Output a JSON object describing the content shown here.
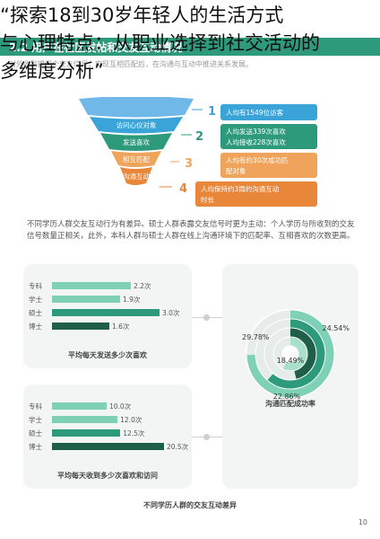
{
  "overlay_title": [
    "“探索18到30岁年轻人的生活方式",
    "与心理特点：从职业选择到社交活动的",
    "多维度分析”"
  ],
  "section_title": "2.2 用户在社区发帖和交友互动情况",
  "intro_text": "对外收到提问个交友信号，实现互相匹配后，在沟通与互动中推进关系发展。",
  "funnel": {
    "stages": [
      {
        "label": "",
        "color": "#6fb8e8"
      },
      {
        "label": "访问心仪对象",
        "color": "#3aa3d8"
      },
      {
        "label": "发送喜欢",
        "color": "#2e9a7c"
      },
      {
        "label": "相互匹配",
        "color": "#f0a35a"
      },
      {
        "label": "沟通互动",
        "color": "#e8863a"
      }
    ],
    "steps": [
      {
        "num": "1",
        "text": [
          "人均有1549位访客"
        ],
        "color": "#3aa3d8"
      },
      {
        "num": "2",
        "text": [
          "人均发送339次喜欢",
          "人均接收228次喜欢"
        ],
        "color": "#2e9a7c"
      },
      {
        "num": "3",
        "text": [
          "人均有约30次成功匹",
          "配对象"
        ],
        "color": "#f0a35a"
      },
      {
        "num": "4",
        "text": [
          "人均保持约3周的沟通互动",
          "时长"
        ],
        "color": "#e8863a"
      }
    ]
  },
  "paragraph": "不同学历人群交友互动行为有差异。硕士人群表露交友信号时更为主动：个人学历与所收到的交友信号数量正相关，此外，本科人群与硕士人群在线上沟通环境下的匹配率、互相喜欢的次数更高。",
  "charts": {
    "sent": {
      "title": "平均每天发送多少次喜欢"
    },
    "received": {
      "title": "平均每天收到多少次喜欢和访问"
    },
    "donut": {
      "title": "沟通匹配成功率"
    }
  },
  "footer_title": "不同学历人群的交友互动差异",
  "page_number": "10",
  "chart_data": [
    {
      "type": "bar",
      "orientation": "horizontal",
      "title": "平均每天发送多少次喜欢",
      "categories": [
        "专科",
        "学士",
        "硕士",
        "博士"
      ],
      "values": [
        2.2,
        1.9,
        3.0,
        1.6
      ],
      "value_labels": [
        "2.2次",
        "1.9次",
        "3.0次",
        "1.6次"
      ],
      "colors": [
        "#7fd1b5",
        "#7fd1b5",
        "#2e9a7c",
        "#1f5f4a"
      ],
      "xlim": [
        0,
        3.2
      ]
    },
    {
      "type": "bar",
      "orientation": "horizontal",
      "title": "平均每天收到多少次喜欢和访问",
      "categories": [
        "专科",
        "学士",
        "硕士",
        "博士"
      ],
      "values": [
        10.0,
        12.0,
        12.5,
        20.5
      ],
      "value_labels": [
        "10.0次",
        "12.0次",
        "12.5次",
        "20.5次"
      ],
      "colors": [
        "#7fd1b5",
        "#7fd1b5",
        "#2e9a7c",
        "#1f5f4a"
      ],
      "xlim": [
        0,
        21
      ]
    },
    {
      "type": "pie",
      "variant": "nested-rings",
      "title": "沟通匹配成功率",
      "values": [
        29.78,
        24.54,
        18.49,
        22.86
      ],
      "value_labels": [
        "29.78%",
        "24.54%",
        "18.49%",
        "22.86%"
      ],
      "colors": [
        "#7fd1b5",
        "#2e9a7c",
        "#1f5f4a",
        "#a8e0cc"
      ]
    }
  ]
}
